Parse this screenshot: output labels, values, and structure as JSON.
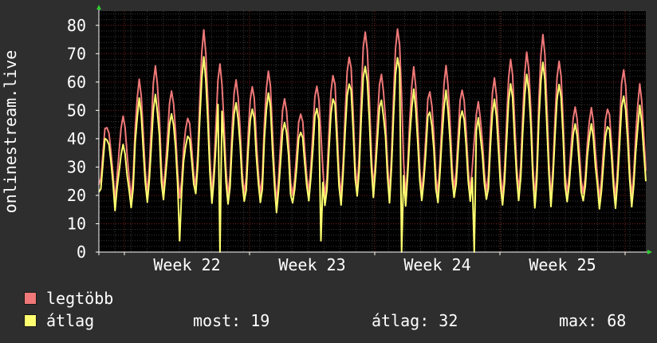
{
  "chart_data": {
    "type": "line",
    "ylabel": "onlinestream.live",
    "ylim": [
      0,
      85
    ],
    "yticks": [
      0,
      10,
      20,
      30,
      40,
      50,
      60,
      70,
      80
    ],
    "x_tick_labels": [
      "Week 22",
      "Week 23",
      "Week 24",
      "Week 25"
    ],
    "grid": true,
    "series": [
      {
        "name": "legtöbb",
        "color": "#f07878",
        "daily_peaks": [
          45,
          48,
          60,
          66,
          57,
          48,
          77,
          65,
          61,
          58,
          63,
          55,
          50,
          58,
          63,
          70,
          78,
          63,
          79,
          65,
          57,
          65,
          58,
          52,
          60,
          67,
          70,
          76,
          68,
          51,
          50,
          51,
          65,
          58
        ]
      },
      {
        "name": "átlag",
        "color": "#ffff70",
        "daily_peaks": [
          41,
          38,
          53,
          56,
          49,
          42,
          67,
          55,
          53,
          50,
          55,
          47,
          44,
          50,
          55,
          61,
          66,
          54,
          69,
          57,
          50,
          56,
          51,
          46,
          52,
          58,
          62,
          66,
          60,
          45,
          44,
          45,
          56,
          50
        ]
      }
    ]
  },
  "legend": {
    "max_label": "legtöbb",
    "avg_label": "átlag",
    "max_color": "#f07878",
    "avg_color": "#ffff70"
  },
  "stats": {
    "most": "most: 19",
    "atlag": "átlag: 32",
    "max": "max: 68"
  }
}
